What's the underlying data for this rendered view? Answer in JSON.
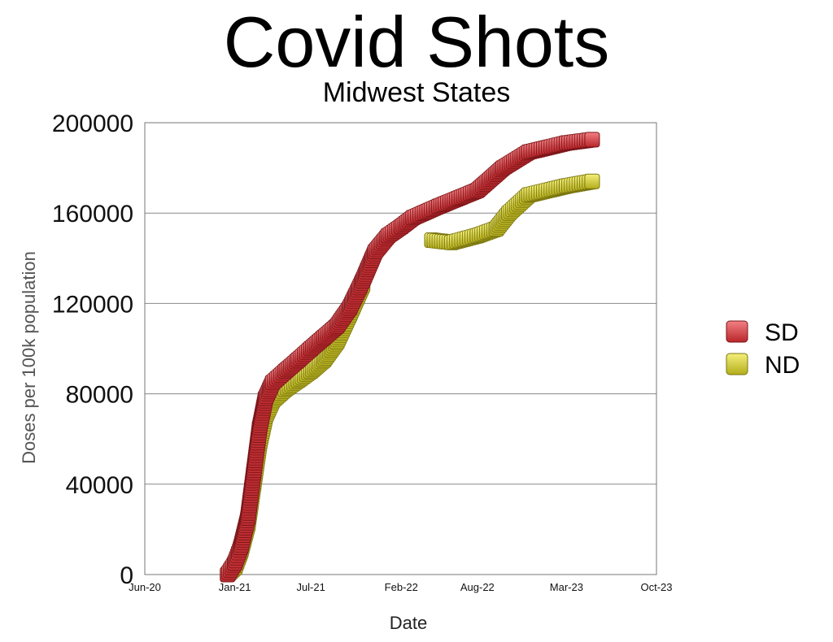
{
  "chart_data": {
    "type": "scatter",
    "title": "Covid Shots",
    "subtitle": "Midwest States",
    "xlabel": "Date",
    "ylabel": "Doses per 100k population",
    "ylim": [
      0,
      200000
    ],
    "yticks": [
      "0",
      "40000",
      "80000",
      "120000",
      "160000",
      "200000"
    ],
    "xlim": [
      "2020-06-01",
      "2023-10-01"
    ],
    "xticks": [
      {
        "label": "Jun-20",
        "date": "2020-06-01"
      },
      {
        "label": "Jan-21",
        "date": "2021-01-01"
      },
      {
        "label": "Jul-21",
        "date": "2021-07-01"
      },
      {
        "label": "Feb-22",
        "date": "2022-02-01"
      },
      {
        "label": "Aug-22",
        "date": "2022-08-01"
      },
      {
        "label": "Mar-23",
        "date": "2023-03-01"
      },
      {
        "label": "Oct-23",
        "date": "2023-10-01"
      }
    ],
    "grid": "horizontal",
    "legend_position": "right",
    "series": [
      {
        "name": "SD",
        "color": "#d93a3e",
        "points": [
          [
            "2020-12-15",
            0
          ],
          [
            "2021-01-01",
            5000
          ],
          [
            "2021-01-15",
            12000
          ],
          [
            "2021-02-01",
            25000
          ],
          [
            "2021-02-15",
            45000
          ],
          [
            "2021-03-01",
            65000
          ],
          [
            "2021-03-15",
            78000
          ],
          [
            "2021-04-01",
            85000
          ],
          [
            "2021-05-01",
            90000
          ],
          [
            "2021-06-01",
            95000
          ],
          [
            "2021-07-01",
            100000
          ],
          [
            "2021-08-01",
            105000
          ],
          [
            "2021-09-01",
            110000
          ],
          [
            "2021-10-01",
            118000
          ],
          [
            "2021-11-01",
            130000
          ],
          [
            "2021-12-01",
            143000
          ],
          [
            "2022-01-01",
            150000
          ],
          [
            "2022-02-01",
            154000
          ],
          [
            "2022-03-01",
            158000
          ],
          [
            "2022-05-01",
            163000
          ],
          [
            "2022-08-01",
            170000
          ],
          [
            "2022-10-01",
            180000
          ],
          [
            "2022-12-01",
            187000
          ],
          [
            "2023-03-01",
            191000
          ],
          [
            "2023-05-01",
            192500
          ]
        ]
      },
      {
        "name": "ND",
        "color": "#d8d43a",
        "points": [
          [
            "2020-12-15",
            0
          ],
          [
            "2021-01-01",
            3000
          ],
          [
            "2021-01-15",
            10000
          ],
          [
            "2021-02-01",
            22000
          ],
          [
            "2021-02-15",
            40000
          ],
          [
            "2021-03-01",
            58000
          ],
          [
            "2021-03-15",
            70000
          ],
          [
            "2021-04-01",
            77000
          ],
          [
            "2021-05-01",
            82000
          ],
          [
            "2021-06-01",
            86000
          ],
          [
            "2021-07-01",
            90000
          ],
          [
            "2021-08-01",
            95000
          ],
          [
            "2021-09-01",
            103000
          ],
          [
            "2021-10-01",
            115000
          ],
          [
            "2021-11-01",
            128000
          ],
          [
            "2022-04-15",
            148000
          ],
          [
            "2022-06-01",
            147000
          ],
          [
            "2022-08-01",
            150000
          ],
          [
            "2022-09-15",
            153000
          ],
          [
            "2022-10-15",
            160000
          ],
          [
            "2022-12-01",
            168000
          ],
          [
            "2023-03-01",
            172000
          ],
          [
            "2023-05-01",
            174000
          ]
        ]
      }
    ]
  }
}
